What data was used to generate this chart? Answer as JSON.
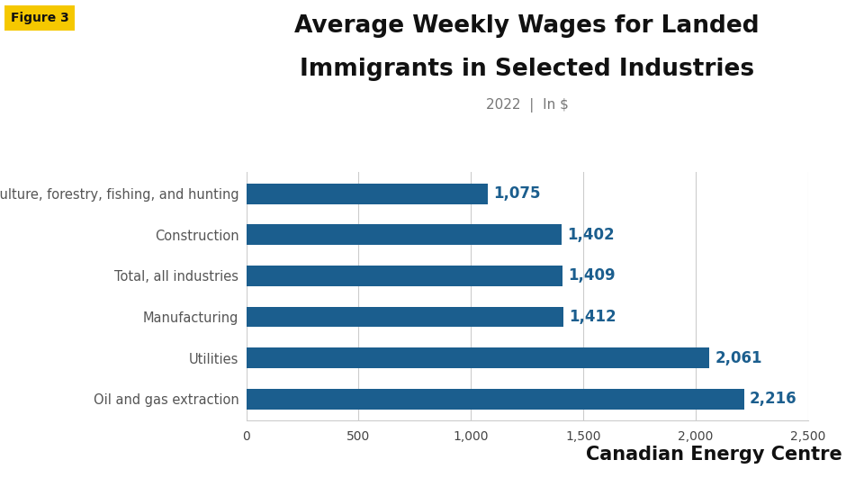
{
  "title_line1": "Average Weekly Wages for Landed",
  "title_line2": "Immigrants in Selected Industries",
  "subtitle": "2022  |  In $",
  "figure_label": "Figure 3",
  "figure_label_bg": "#F5C800",
  "categories": [
    "Agriculture, forestry, fishing, and hunting",
    "Construction",
    "Total, all industries",
    "Manufacturing",
    "Utilities",
    "Oil and gas extraction"
  ],
  "values": [
    1075,
    1402,
    1409,
    1412,
    2061,
    2216
  ],
  "bar_color": "#1B5E8E",
  "value_color": "#1B5E8E",
  "label_color": "#555555",
  "background_color": "#FFFFFF",
  "xlim": [
    0,
    2500
  ],
  "xticks": [
    0,
    500,
    1000,
    1500,
    2000,
    2500
  ],
  "bar_height": 0.5,
  "title_fontsize": 19,
  "subtitle_fontsize": 11,
  "label_fontsize": 10.5,
  "value_fontsize": 12,
  "xtick_fontsize": 10,
  "footer_text": "Canadian Energy Centre",
  "footer_fontsize": 15
}
